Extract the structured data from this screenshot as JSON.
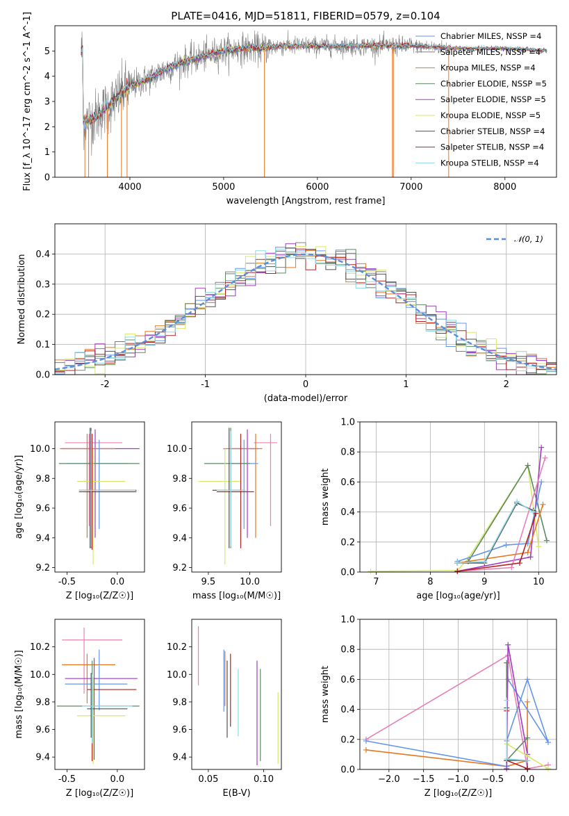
{
  "chart_data": [
    {
      "type": "line",
      "title": "PLATE=0416, MJD=51811, FIBERID=0579, z=0.104",
      "xlabel": "wavelength [Angstrom, rest frame]",
      "ylabel": "Flux [f_λ 10^-17 erg cm^-2 s^-1 A^-1]",
      "xlim": [
        3200,
        8550
      ],
      "ylim": [
        0,
        6
      ],
      "xticks": [
        4000,
        5000,
        6000,
        7000,
        8000
      ],
      "yticks": [
        0,
        1,
        2,
        3,
        4,
        5
      ],
      "legend_position": "right",
      "legend": [
        {
          "name": "Chabrier MILES, N_SSP=4",
          "color": "#6495ED"
        },
        {
          "name": "Salpeter MILES, N_SSP=4",
          "color": "#808080"
        },
        {
          "name": "Kroupa MILES, N_SSP=4",
          "color": "#E8761E"
        },
        {
          "name": "Chabrier ELODIE, N_SSP=5",
          "color": "#5B8A62"
        },
        {
          "name": "Salpeter ELODIE, N_SSP=5",
          "color": "#A03BC0"
        },
        {
          "name": "Kroupa ELODIE, N_SSP=5",
          "color": "#D8E86A"
        },
        {
          "name": "Chabrier STELIB, N_SSP=4",
          "color": "#505050"
        },
        {
          "name": "Salpeter STELIB, N_SSP=4",
          "color": "#B22222"
        },
        {
          "name": "Kroupa STELIB, N_SSP=4",
          "color": "#8ED8E8"
        }
      ],
      "data_envelope": {
        "x": [
          3500,
          3600,
          3700,
          3800,
          3900,
          4000,
          4200,
          4400,
          4600,
          4800,
          5000,
          5200,
          5400,
          5600,
          5800,
          6000,
          6500,
          7000,
          7500,
          8000,
          8500
        ],
        "y": [
          2.2,
          2.3,
          2.6,
          2.9,
          3.3,
          3.6,
          3.9,
          4.3,
          4.6,
          4.8,
          5.0,
          5.1,
          5.1,
          5.2,
          5.2,
          5.2,
          5.2,
          5.2,
          5.1,
          5.1,
          5.0
        ]
      }
    },
    {
      "type": "histogram",
      "xlabel": "(data-model)/error",
      "ylabel": "Normed distribution",
      "xlim": [
        -2.5,
        2.5
      ],
      "ylim": [
        0,
        0.5
      ],
      "xticks": [
        -2,
        -1,
        0,
        1,
        2
      ],
      "yticks": [
        0.0,
        0.1,
        0.2,
        0.3,
        0.4
      ],
      "grid": true,
      "reference_curve": "N(0,1)",
      "legend_label": "𝒩(0, 1)",
      "legend_position": "top-right",
      "bin_width": 0.1
    },
    {
      "type": "errorbar",
      "xlabel": "Z [log₁₀(Z/Z☉)]",
      "ylabel": "age  [log₁₀(age/yr)]",
      "xlim": [
        -0.62,
        0.27
      ],
      "ylim": [
        9.17,
        10.18
      ],
      "xticks": [
        -0.5,
        0.0
      ],
      "yticks": [
        9.2,
        9.4,
        9.6,
        9.8,
        10.0
      ],
      "points": [
        {
          "x": -0.28,
          "y": 10.04,
          "xe": [
            -0.52,
            0.05
          ],
          "ye": [
            9.48,
            10.1
          ],
          "c": "#E97FB8"
        },
        {
          "x": -0.22,
          "y": 10.0,
          "xe": [
            -0.55,
            0.22
          ],
          "ye": [
            9.4,
            10.13
          ],
          "c": "#A03BC0"
        },
        {
          "x": -0.3,
          "y": 10.0,
          "xe": [
            -0.57,
            -0.02
          ],
          "ye": [
            9.4,
            10.1
          ],
          "c": "#E8761E"
        },
        {
          "x": -0.18,
          "y": 9.9,
          "xe": [
            -0.5,
            0.1
          ],
          "ye": [
            9.46,
            10.06
          ],
          "c": "#6495ED"
        },
        {
          "x": -0.26,
          "y": 9.9,
          "xe": [
            -0.58,
            0.22
          ],
          "ye": [
            9.33,
            10.14
          ],
          "c": "#5B8A62"
        },
        {
          "x": -0.24,
          "y": 9.78,
          "xe": [
            -0.4,
            0.08
          ],
          "ye": [
            9.22,
            10.0
          ],
          "c": "#D8E86A"
        },
        {
          "x": -0.25,
          "y": 9.72,
          "xe": [
            -0.38,
            0.19
          ],
          "ye": [
            9.32,
            10.1
          ],
          "c": "#B22222"
        },
        {
          "x": -0.27,
          "y": 9.71,
          "xe": [
            -0.38,
            0.19
          ],
          "ye": [
            9.33,
            10.14
          ],
          "c": "#505050"
        },
        {
          "x": -0.26,
          "y": 9.72,
          "xe": [
            -0.38,
            0.18
          ],
          "ye": [
            9.34,
            10.12
          ],
          "c": "#8ED8E8"
        }
      ]
    },
    {
      "type": "errorbar",
      "xlabel": "mass [log₁₀(M/M☉)]",
      "ylabel": "",
      "xlim": [
        9.3,
        10.38
      ],
      "ylim": [
        9.17,
        10.18
      ],
      "xticks": [
        9.5,
        10.0
      ],
      "yticks": [
        9.2,
        9.4,
        9.6,
        9.8,
        10.0
      ],
      "points": [
        {
          "x": 10.25,
          "y": 10.04,
          "xe": [
            10.05,
            10.33
          ],
          "ye": [
            9.48,
            10.1
          ],
          "c": "#E97FB8"
        },
        {
          "x": 9.97,
          "y": 10.0,
          "xe": [
            9.75,
            10.1
          ],
          "ye": [
            9.4,
            10.13
          ],
          "c": "#A03BC0"
        },
        {
          "x": 10.07,
          "y": 10.0,
          "xe": [
            9.68,
            10.15
          ],
          "ye": [
            9.4,
            10.1
          ],
          "c": "#E8761E"
        },
        {
          "x": 9.93,
          "y": 9.9,
          "xe": [
            9.75,
            10.1
          ],
          "ye": [
            9.46,
            10.06
          ],
          "c": "#6495ED"
        },
        {
          "x": 9.77,
          "y": 9.9,
          "xe": [
            9.45,
            10.0
          ],
          "ye": [
            9.33,
            10.14
          ],
          "c": "#5B8A62"
        },
        {
          "x": 9.7,
          "y": 9.78,
          "xe": [
            9.38,
            9.88
          ],
          "ye": [
            9.22,
            10.0
          ],
          "c": "#D8E86A"
        },
        {
          "x": 9.89,
          "y": 9.71,
          "xe": [
            9.6,
            10.05
          ],
          "ye": [
            9.33,
            10.1
          ],
          "c": "#B22222"
        },
        {
          "x": 9.75,
          "y": 9.72,
          "xe": [
            9.55,
            9.92
          ],
          "ye": [
            9.33,
            10.14
          ],
          "c": "#505050"
        },
        {
          "x": 9.77,
          "y": 9.72,
          "xe": [
            9.6,
            9.95
          ],
          "ye": [
            9.34,
            10.12
          ],
          "c": "#8ED8E8"
        }
      ]
    },
    {
      "type": "line",
      "xlabel": "age  [log₁₀(age/yr)]",
      "ylabel": "mass weight",
      "xlim": [
        6.7,
        10.33
      ],
      "ylim": [
        0,
        1
      ],
      "xticks": [
        7,
        8,
        9,
        10
      ],
      "yticks": [
        0.0,
        0.2,
        0.4,
        0.6,
        0.8,
        1.0
      ],
      "grid": true,
      "series": [
        {
          "c": "#D8E86A",
          "x": [
            6.9,
            8.5,
            8.7,
            9.8,
            10.0
          ],
          "y": [
            0.005,
            0.01,
            0.09,
            0.71,
            0.17
          ]
        },
        {
          "c": "#5B8A62",
          "x": [
            8.5,
            8.7,
            9.8,
            10.15
          ],
          "y": [
            0.06,
            0.07,
            0.71,
            0.21
          ]
        },
        {
          "c": "#A03BC0",
          "x": [
            8.5,
            9.85,
            10.05
          ],
          "y": [
            0.005,
            0.1,
            0.83
          ]
        },
        {
          "c": "#E97FB8",
          "x": [
            8.5,
            9.5,
            10.12
          ],
          "y": [
            0.005,
            0.03,
            0.76
          ]
        },
        {
          "c": "#E8761E",
          "x": [
            8.5,
            9.8,
            10.08
          ],
          "y": [
            0.06,
            0.13,
            0.45
          ]
        },
        {
          "c": "#6495ED",
          "x": [
            8.5,
            9.4,
            9.8,
            10.05
          ],
          "y": [
            0.07,
            0.18,
            0.19,
            0.6
          ]
        },
        {
          "c": "#B22222",
          "x": [
            8.5,
            9.65,
            9.95
          ],
          "y": [
            0.005,
            0.06,
            0.39
          ]
        },
        {
          "c": "#505050",
          "x": [
            8.5,
            9.0,
            9.6,
            9.9
          ],
          "y": [
            0.06,
            0.06,
            0.46,
            0.41
          ]
        },
        {
          "c": "#8ED8E8",
          "x": [
            8.5,
            9.0,
            9.6,
            9.9
          ],
          "y": [
            0.06,
            0.07,
            0.47,
            0.4
          ]
        }
      ]
    },
    {
      "type": "errorbar",
      "xlabel": "Z [log₁₀(Z/Z☉)]",
      "ylabel": "mass [log₁₀(M/M☉)]",
      "xlim": [
        -0.62,
        0.27
      ],
      "ylim": [
        9.31,
        10.4
      ],
      "xticks": [
        -0.5,
        0.0
      ],
      "yticks": [
        9.4,
        9.6,
        9.8,
        10.0,
        10.2
      ],
      "points": [
        {
          "x": -0.33,
          "y": 10.25,
          "xe": [
            -0.55,
            0.05
          ],
          "ye": [
            9.86,
            10.34
          ],
          "c": "#E97FB8"
        },
        {
          "x": -0.3,
          "y": 10.07,
          "xe": [
            -0.55,
            -0.02
          ],
          "ye": [
            9.79,
            10.15
          ],
          "c": "#E8761E"
        },
        {
          "x": -0.23,
          "y": 9.97,
          "xe": [
            -0.52,
            0.2
          ],
          "ye": [
            9.38,
            10.12
          ],
          "c": "#A03BC0"
        },
        {
          "x": -0.18,
          "y": 9.93,
          "xe": [
            -0.52,
            0.1
          ],
          "ye": [
            9.74,
            10.18
          ],
          "c": "#6495ED"
        },
        {
          "x": -0.25,
          "y": 9.89,
          "xe": [
            -0.3,
            0.19
          ],
          "ye": [
            9.37,
            9.95
          ],
          "c": "#B22222"
        },
        {
          "x": -0.25,
          "y": 9.77,
          "xe": [
            -0.6,
            0.22
          ],
          "ye": [
            9.55,
            10.1
          ],
          "c": "#5B8A62"
        },
        {
          "x": -0.24,
          "y": 9.7,
          "xe": [
            -0.4,
            0.08
          ],
          "ye": [
            9.35,
            9.98
          ],
          "c": "#D8E86A"
        },
        {
          "x": -0.26,
          "y": 9.75,
          "xe": [
            -0.3,
            0.1
          ],
          "ye": [
            9.54,
            10.01
          ],
          "c": "#505050"
        },
        {
          "x": -0.25,
          "y": 9.77,
          "xe": [
            -0.35,
            0.15
          ],
          "ye": [
            9.5,
            10.0
          ],
          "c": "#8ED8E8"
        }
      ]
    },
    {
      "type": "errorbar",
      "xlabel": "E(B-V)",
      "ylabel": "",
      "xlim": [
        0.035,
        0.116
      ],
      "ylim": [
        9.31,
        10.4
      ],
      "xticks": [
        0.05,
        0.1
      ],
      "yticks": [
        9.4,
        9.6,
        9.8,
        10.0,
        10.2
      ],
      "points": [
        {
          "x": 0.041,
          "y": 10.1,
          "ye": [
            9.92,
            10.35
          ],
          "c": "#E97FB8"
        },
        {
          "x": 0.064,
          "y": 9.95,
          "ye": [
            9.73,
            10.18
          ],
          "c": "#6495ED"
        },
        {
          "x": 0.065,
          "y": 9.95,
          "ye": [
            9.77,
            10.17
          ],
          "c": "#E8761E"
        },
        {
          "x": 0.067,
          "y": 9.8,
          "ye": [
            9.54,
            10.1
          ],
          "c": "#505050"
        },
        {
          "x": 0.07,
          "y": 9.9,
          "ye": [
            9.62,
            10.15
          ],
          "c": "#B22222"
        },
        {
          "x": 0.077,
          "y": 9.8,
          "ye": [
            9.55,
            10.04
          ],
          "c": "#8ED8E8"
        },
        {
          "x": 0.094,
          "y": 9.7,
          "ye": [
            9.34,
            10.1
          ],
          "c": "#A03BC0"
        },
        {
          "x": 0.097,
          "y": 9.7,
          "ye": [
            9.37,
            10.04
          ],
          "c": "#5B8A62"
        },
        {
          "x": 0.113,
          "y": 9.6,
          "ye": [
            9.35,
            9.87
          ],
          "c": "#D8E86A"
        }
      ]
    },
    {
      "type": "line",
      "xlabel": "Z [log₁₀(Z/Z☉)]",
      "ylabel": "mass weight",
      "xlim": [
        -2.42,
        0.42
      ],
      "ylim": [
        0,
        1
      ],
      "xticks": [
        -2.0,
        -1.5,
        -1.0,
        -0.5,
        0.0
      ],
      "yticks": [
        0.0,
        0.2,
        0.4,
        0.6,
        0.8,
        1.0
      ],
      "grid": true,
      "series": [
        {
          "c": "#E97FB8",
          "x": [
            -2.33,
            -0.28,
            0.0,
            0.3
          ],
          "y": [
            0.2,
            0.76,
            0.005,
            0.03
          ]
        },
        {
          "c": "#E8761E",
          "x": [
            -2.33,
            -0.3,
            0.0,
            0.0
          ],
          "y": [
            0.13,
            0.02,
            0.06,
            0.45
          ]
        },
        {
          "c": "#6495ED",
          "x": [
            -2.33,
            -0.3,
            -0.3,
            0.0,
            0.3,
            -0.28
          ],
          "y": [
            0.19,
            0.02,
            0.19,
            0.6,
            0.18,
            0.6
          ]
        },
        {
          "c": "#A03BC0",
          "x": [
            -0.3,
            -0.28,
            0.0,
            0.0
          ],
          "y": [
            0.005,
            0.83,
            0.1,
            0.005
          ]
        },
        {
          "c": "#D8E86A",
          "x": [
            -0.3,
            -0.3,
            0.0,
            0.3
          ],
          "y": [
            0.71,
            0.17,
            0.09,
            0.005
          ]
        },
        {
          "c": "#5B8A62",
          "x": [
            -0.3,
            -0.3,
            0.0
          ],
          "y": [
            0.71,
            0.06,
            0.21
          ]
        },
        {
          "c": "#B22222",
          "x": [
            -0.3,
            -0.3,
            0.0
          ],
          "y": [
            0.39,
            0.06,
            0.005
          ]
        },
        {
          "c": "#505050",
          "x": [
            -0.3,
            -0.3,
            0.0
          ],
          "y": [
            0.41,
            0.06,
            0.06
          ]
        },
        {
          "c": "#8ED8E8",
          "x": [
            -0.3,
            -0.3,
            0.0
          ],
          "y": [
            0.46,
            0.07,
            0.06
          ]
        }
      ]
    }
  ]
}
